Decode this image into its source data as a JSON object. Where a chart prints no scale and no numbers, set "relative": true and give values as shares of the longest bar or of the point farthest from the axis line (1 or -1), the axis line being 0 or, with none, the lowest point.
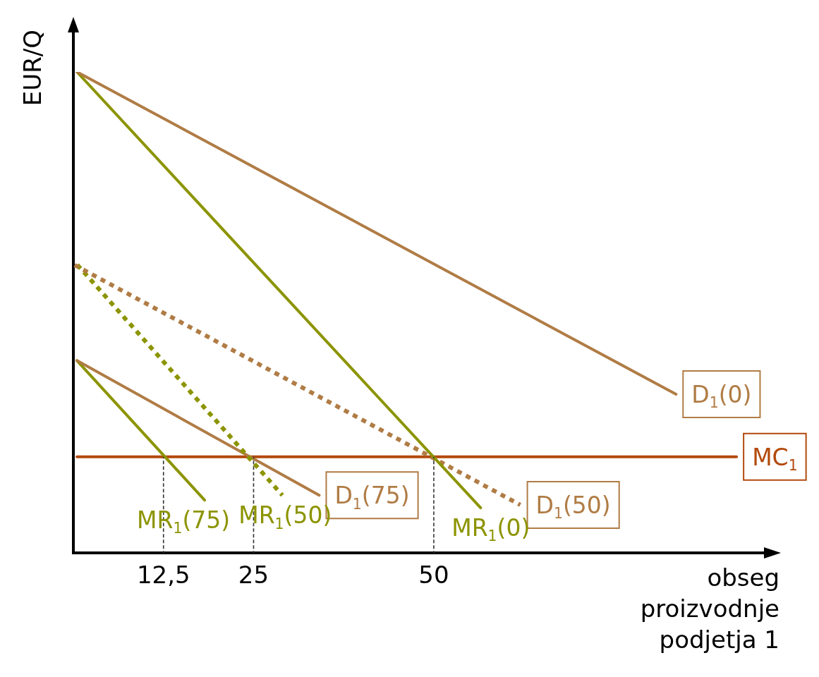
{
  "chart_data": {
    "type": "line",
    "relative": true,
    "xlabel": "obseg\nproizvodnje\npodjetja 1",
    "ylabel": "EUR/Q",
    "xlim": [
      0,
      96
    ],
    "xticks": [
      {
        "value": 12.5,
        "label": "12,5"
      },
      25,
      50
    ],
    "series": [
      {
        "name": "D$_{1}$(0)",
        "color": "#b07c45",
        "x": [
          0.5,
          83.6
        ],
        "values": [
          1,
          0.33
        ]
      },
      {
        "name": "MR$_{1}$(0)",
        "color": "#8c9400",
        "x": [
          0.5,
          56.5
        ],
        "values": [
          1,
          0.094
        ]
      },
      {
        "name": "D$_{1}$(50)",
        "color": "#b07c45",
        "line_style": "dotted",
        "x": [
          0,
          62
        ],
        "values": [
          0.6,
          0.1
        ]
      },
      {
        "name": "MR$_{1}$(50)",
        "color": "#8c9400",
        "line_style": "dotted",
        "x": [
          0.5,
          29
        ],
        "values": [
          0.6,
          0.12
        ]
      },
      {
        "name": "D$_{1}$(75)",
        "color": "#b07c45",
        "x": [
          0.5,
          34.1
        ],
        "values": [
          0.4,
          0.12
        ]
      },
      {
        "name": "MR$_{1}$(75)",
        "color": "#8c9400",
        "x": [
          0.5,
          18.2
        ],
        "values": [
          0.4,
          0.11
        ]
      },
      {
        "name": "MC$_{1}$",
        "color": "#b34a0c",
        "x": [
          0.5,
          92
        ],
        "values": [
          0.2,
          0.2
        ]
      },
      {
        "color": "#333333",
        "line_style": "dashed",
        "x": [
          12.5,
          12.5
        ],
        "values": [
          0,
          0.2
        ]
      },
      {
        "color": "#333333",
        "line_style": "dashed",
        "x": [
          25,
          25
        ],
        "values": [
          0,
          0.2
        ]
      },
      {
        "color": "#333333",
        "line_style": "dashed",
        "x": [
          50,
          50
        ],
        "values": [
          0,
          0.2
        ]
      }
    ]
  }
}
